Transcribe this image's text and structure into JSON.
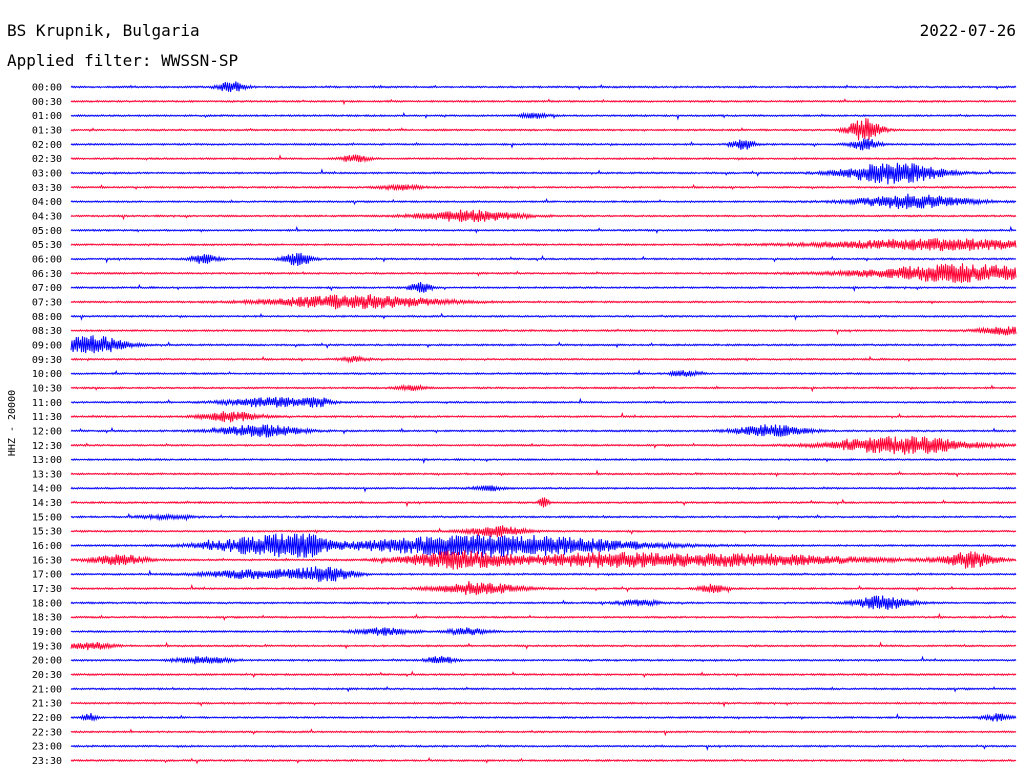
{
  "header": {
    "station": "BS Krupnik, Bulgaria",
    "date": "2022-07-26",
    "filter": "Applied filter: WWSSN-SP"
  },
  "chart_data": {
    "type": "line",
    "ylabel": "HHZ - 20000",
    "colors": [
      "#0000ff",
      "#ff0033"
    ],
    "rows": [
      {
        "time": "00:00",
        "events": [
          [
            0.17,
            0.45,
            0.01
          ]
        ]
      },
      {
        "time": "00:30",
        "events": []
      },
      {
        "time": "01:00",
        "events": [
          [
            0.49,
            0.2,
            0.01
          ]
        ]
      },
      {
        "time": "01:30",
        "events": [
          [
            0.84,
            1.0,
            0.012
          ]
        ]
      },
      {
        "time": "02:00",
        "events": [
          [
            0.71,
            0.5,
            0.008
          ],
          [
            0.84,
            0.45,
            0.01
          ]
        ]
      },
      {
        "time": "02:30",
        "events": [
          [
            0.3,
            0.3,
            0.01
          ]
        ]
      },
      {
        "time": "03:00",
        "events": [
          [
            0.87,
            0.9,
            0.035
          ]
        ]
      },
      {
        "time": "03:30",
        "events": [
          [
            0.35,
            0.2,
            0.015
          ]
        ]
      },
      {
        "time": "04:00",
        "events": [
          [
            0.89,
            0.6,
            0.04
          ]
        ]
      },
      {
        "time": "04:30",
        "events": [
          [
            0.42,
            0.5,
            0.035
          ]
        ]
      },
      {
        "time": "05:00",
        "events": []
      },
      {
        "time": "05:30",
        "events": [
          [
            0.92,
            0.5,
            0.08
          ]
        ]
      },
      {
        "time": "06:00",
        "events": [
          [
            0.14,
            0.4,
            0.01
          ],
          [
            0.24,
            0.6,
            0.01
          ]
        ]
      },
      {
        "time": "06:30",
        "events": [
          [
            0.94,
            0.75,
            0.07
          ]
        ]
      },
      {
        "time": "07:00",
        "events": [
          [
            0.37,
            0.4,
            0.008
          ]
        ]
      },
      {
        "time": "07:30",
        "events": [
          [
            0.3,
            0.6,
            0.06
          ]
        ]
      },
      {
        "time": "08:00",
        "events": []
      },
      {
        "time": "08:30",
        "events": [
          [
            0.99,
            0.35,
            0.02
          ]
        ]
      },
      {
        "time": "09:00",
        "events": [
          [
            0.02,
            0.8,
            0.025
          ]
        ]
      },
      {
        "time": "09:30",
        "events": [
          [
            0.3,
            0.2,
            0.01
          ]
        ]
      },
      {
        "time": "10:00",
        "events": [
          [
            0.65,
            0.25,
            0.01
          ]
        ]
      },
      {
        "time": "10:30",
        "events": [
          [
            0.36,
            0.2,
            0.01
          ]
        ]
      },
      {
        "time": "11:00",
        "events": [
          [
            0.21,
            0.4,
            0.03
          ],
          [
            0.26,
            0.35,
            0.01
          ]
        ]
      },
      {
        "time": "11:30",
        "events": [
          [
            0.17,
            0.45,
            0.02
          ]
        ]
      },
      {
        "time": "12:00",
        "events": [
          [
            0.2,
            0.5,
            0.03
          ],
          [
            0.74,
            0.5,
            0.025
          ]
        ]
      },
      {
        "time": "12:30",
        "events": [
          [
            0.88,
            0.75,
            0.05
          ]
        ]
      },
      {
        "time": "13:00",
        "events": []
      },
      {
        "time": "13:30",
        "events": []
      },
      {
        "time": "14:00",
        "events": [
          [
            0.44,
            0.25,
            0.01
          ]
        ]
      },
      {
        "time": "14:30",
        "events": [
          [
            0.5,
            0.6,
            0.003
          ]
        ]
      },
      {
        "time": "15:00",
        "events": [
          [
            0.1,
            0.15,
            0.02
          ]
        ]
      },
      {
        "time": "15:30",
        "events": [
          [
            0.45,
            0.45,
            0.02
          ]
        ]
      },
      {
        "time": "16:00",
        "events": [
          [
            0.2,
            0.7,
            0.04
          ],
          [
            0.24,
            0.75,
            0.02
          ],
          [
            0.4,
            0.6,
            0.08
          ],
          [
            0.5,
            0.55,
            0.08
          ]
        ]
      },
      {
        "time": "16:30",
        "events": [
          [
            0.05,
            0.45,
            0.02
          ],
          [
            0.41,
            0.75,
            0.04
          ],
          [
            0.55,
            0.45,
            0.05
          ],
          [
            0.7,
            0.5,
            0.1
          ],
          [
            0.95,
            0.65,
            0.02
          ]
        ]
      },
      {
        "time": "17:00",
        "events": [
          [
            0.2,
            0.4,
            0.04
          ],
          [
            0.27,
            0.55,
            0.02
          ]
        ]
      },
      {
        "time": "17:30",
        "events": [
          [
            0.43,
            0.5,
            0.03
          ],
          [
            0.68,
            0.35,
            0.01
          ]
        ]
      },
      {
        "time": "18:00",
        "events": [
          [
            0.6,
            0.25,
            0.015
          ],
          [
            0.86,
            0.6,
            0.02
          ]
        ]
      },
      {
        "time": "18:30",
        "events": []
      },
      {
        "time": "19:00",
        "events": [
          [
            0.33,
            0.3,
            0.02
          ],
          [
            0.42,
            0.3,
            0.015
          ]
        ]
      },
      {
        "time": "19:30",
        "events": [
          [
            0.02,
            0.35,
            0.015
          ]
        ]
      },
      {
        "time": "20:00",
        "events": [
          [
            0.14,
            0.3,
            0.02
          ],
          [
            0.39,
            0.35,
            0.01
          ]
        ]
      },
      {
        "time": "20:30",
        "events": []
      },
      {
        "time": "21:00",
        "events": []
      },
      {
        "time": "21:30",
        "events": []
      },
      {
        "time": "22:00",
        "events": [
          [
            0.02,
            0.4,
            0.005
          ],
          [
            0.98,
            0.3,
            0.01
          ]
        ]
      },
      {
        "time": "22:30",
        "events": []
      },
      {
        "time": "23:00",
        "events": []
      },
      {
        "time": "23:30",
        "events": []
      }
    ]
  }
}
